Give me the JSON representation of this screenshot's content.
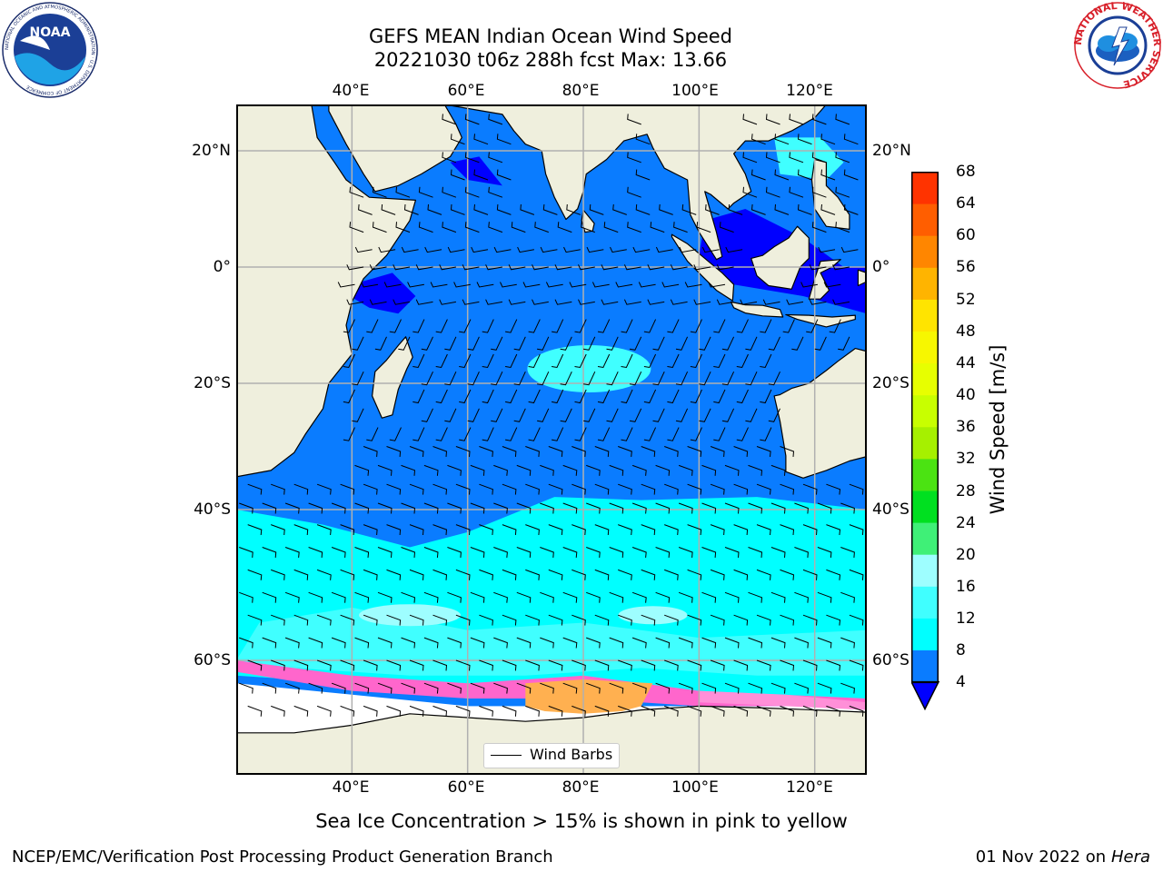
{
  "header": {
    "title_line1": "GEFS MEAN Indian Ocean Wind Speed",
    "title_line2": "20221030 t06z 288h fcst   Max: 13.66"
  },
  "map": {
    "lon_range": [
      20,
      129
    ],
    "lat_range": [
      -75,
      27
    ],
    "lon_ticks": [
      "40°E",
      "60°E",
      "80°E",
      "100°E",
      "120°E"
    ],
    "lat_ticks": [
      "20°N",
      "0°",
      "20°S",
      "40°S",
      "60°S"
    ],
    "land_color": "#efefdd",
    "ocean_color": "#ffffff",
    "gridline_color": "#b0b0b0",
    "legend_label": "Wind Barbs"
  },
  "colorbar": {
    "label": "Wind Speed [m/s]",
    "ticks": [
      "4",
      "8",
      "12",
      "16",
      "20",
      "24",
      "28",
      "32",
      "36",
      "40",
      "44",
      "48",
      "52",
      "56",
      "60",
      "64",
      "68"
    ],
    "colors": [
      "#0a7cff",
      "#00ffff",
      "#40ffff",
      "#9efeff",
      "#3ff077",
      "#00e020",
      "#4be312",
      "#a6f000",
      "#c8ff00",
      "#e7ff00",
      "#f7f700",
      "#ffe400",
      "#ffb400",
      "#ff8600",
      "#ff5e00",
      "#ff3300",
      "#ff0000"
    ],
    "under_color": "#0000ff"
  },
  "footnote": "Sea Ice Concentration > 15% is shown in pink to yellow",
  "credit": "NCEP/EMC/Verification Post Processing Product Generation Branch",
  "date": {
    "text": "01 Nov 2022 on",
    "host": "Hera"
  },
  "logos": {
    "noaa_text": "NOAA",
    "noaa_ring_text": "NATIONAL OCEANIC AND ATMOSPHERIC ADMINISTRATION · U.S. DEPARTMENT OF COMMERCE",
    "nws_ring_text": "NATIONAL WEATHER SERVICE"
  }
}
